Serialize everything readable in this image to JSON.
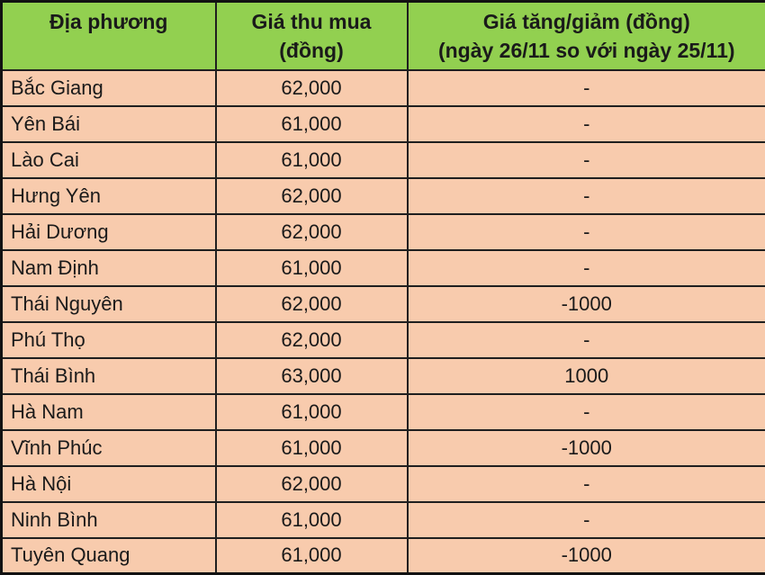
{
  "chart_data": {
    "type": "table",
    "columns": [
      {
        "line1": "Địa phương",
        "line2": ""
      },
      {
        "line1": "Giá thu mua",
        "line2": "(đồng)"
      },
      {
        "line1": "Giá tăng/giảm (đồng)",
        "line2": "(ngày 26/11 so với ngày 25/11)"
      }
    ],
    "rows": [
      {
        "province": "Bắc Giang",
        "price": "62,000",
        "change": "-"
      },
      {
        "province": "Yên Bái",
        "price": "61,000",
        "change": "-"
      },
      {
        "province": "Lào Cai",
        "price": "61,000",
        "change": "-"
      },
      {
        "province": "Hưng Yên",
        "price": "62,000",
        "change": "-"
      },
      {
        "province": "Hải Dương",
        "price": "62,000",
        "change": "-"
      },
      {
        "province": "Nam Định",
        "price": "61,000",
        "change": "-"
      },
      {
        "province": "Thái Nguyên",
        "price": "62,000",
        "change": "-1000"
      },
      {
        "province": "Phú Thọ",
        "price": "62,000",
        "change": "-"
      },
      {
        "province": "Thái Bình",
        "price": "63,000",
        "change": "1000"
      },
      {
        "province": "Hà Nam",
        "price": "61,000",
        "change": "-"
      },
      {
        "province": "Vĩnh Phúc",
        "price": "61,000",
        "change": "-1000"
      },
      {
        "province": "Hà Nội",
        "price": "62,000",
        "change": "-"
      },
      {
        "province": "Ninh Bình",
        "price": "61,000",
        "change": "-"
      },
      {
        "province": "Tuyên Quang",
        "price": "61,000",
        "change": "-1000"
      }
    ]
  },
  "colors": {
    "header_bg": "#92D050",
    "row_bg": "#F8CBAD",
    "border": "#1f1f1f",
    "text": "#1a1a1a"
  }
}
